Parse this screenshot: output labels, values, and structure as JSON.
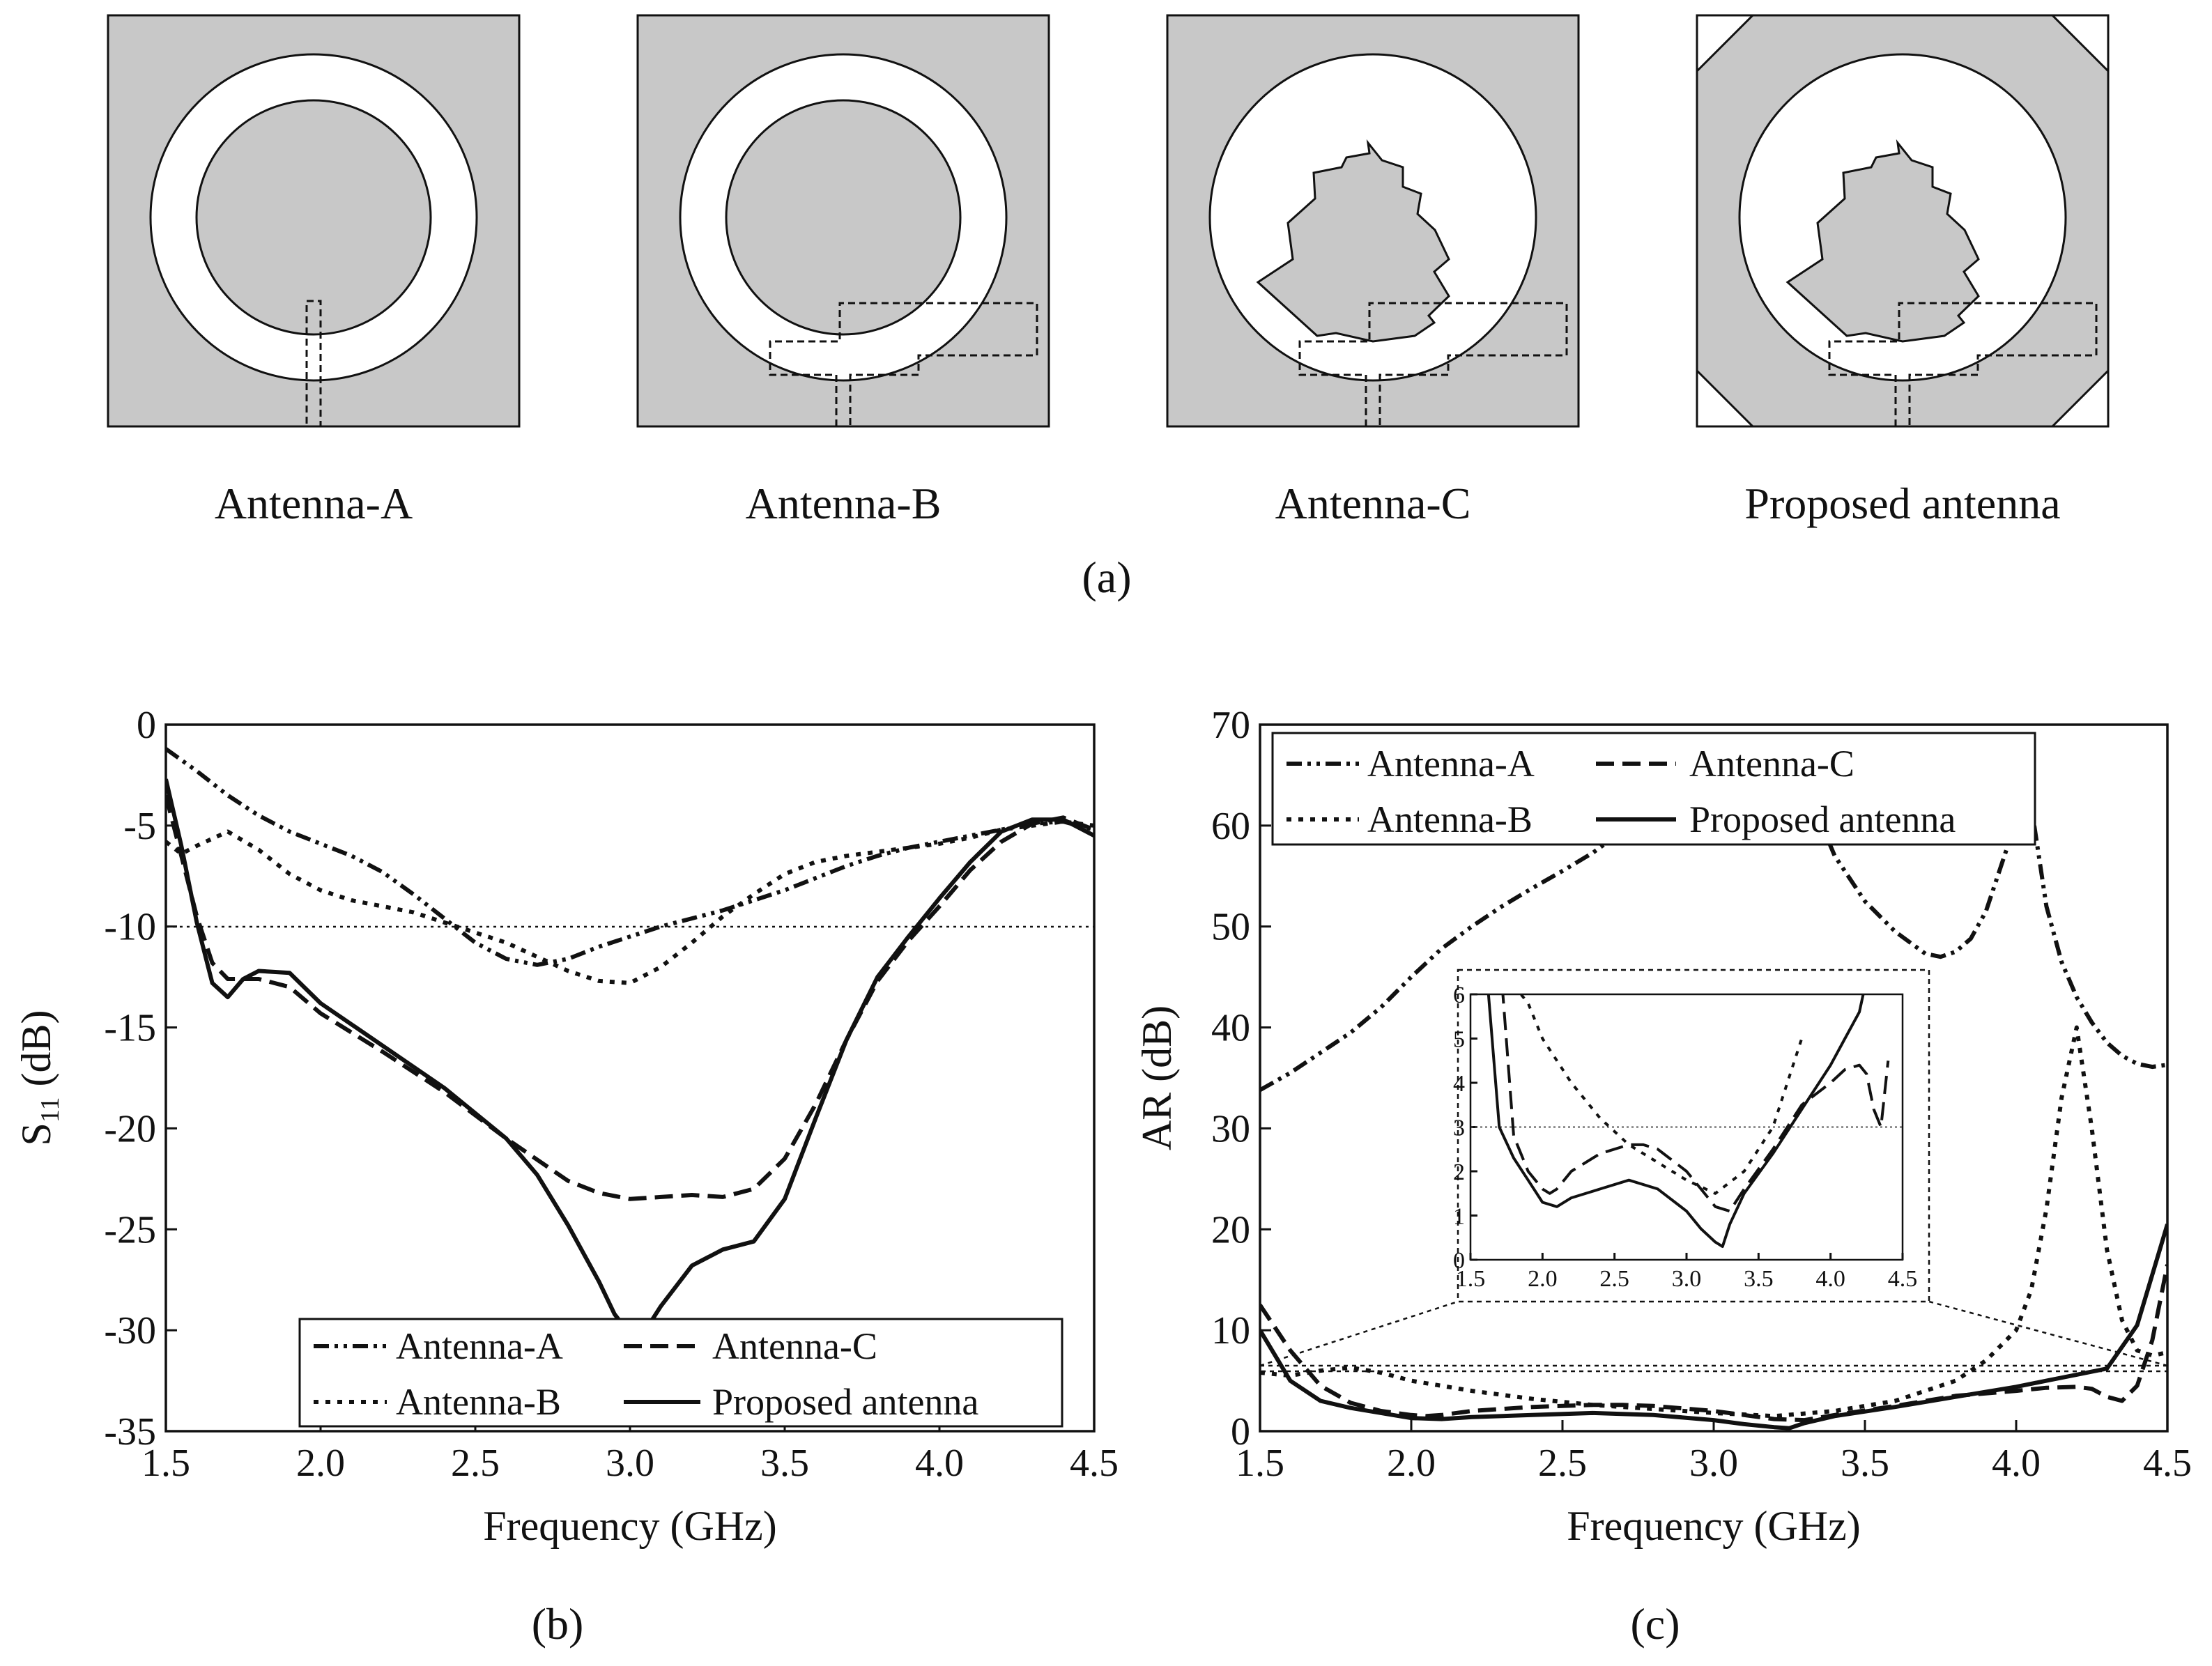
{
  "panel_a": {
    "caption": "(a)",
    "antenna_labels": [
      "Antenna-A",
      "Antenna-B",
      "Antenna-C",
      "Proposed antenna"
    ],
    "colors": {
      "substrate": "#c8c8c8",
      "ring": "#ffffff",
      "outline": "#111111"
    }
  },
  "chart_data": [
    {
      "id": "s11",
      "caption": "(b)",
      "type": "line",
      "title": "",
      "xlabel": "Frequency (GHz)",
      "ylabel_main": "S",
      "ylabel_sub": "11",
      "ylabel_rest": " (dB)",
      "xlim": [
        1.5,
        4.5
      ],
      "ylim": [
        -35,
        0
      ],
      "xticks": [
        1.5,
        2.0,
        2.5,
        3.0,
        3.5,
        4.0,
        4.5
      ],
      "xtick_labels": [
        "1.5",
        "2.0",
        "2.5",
        "3.0",
        "3.5",
        "4.0",
        "4.5"
      ],
      "yticks": [
        0,
        -5,
        -10,
        -15,
        -20,
        -25,
        -30,
        -35
      ],
      "ytick_labels": [
        "0",
        "-5",
        "-10",
        "-15",
        "-20",
        "-25",
        "-30",
        "-35"
      ],
      "reference_line": -10,
      "legend_position": "bottom-right",
      "series": [
        {
          "name": "Antenna-A",
          "style": "dashdotdot",
          "x": [
            1.5,
            1.6,
            1.7,
            1.8,
            1.9,
            2.0,
            2.1,
            2.2,
            2.3,
            2.4,
            2.5,
            2.6,
            2.7,
            2.8,
            2.9,
            3.0,
            3.1,
            3.2,
            3.3,
            3.4,
            3.5,
            3.6,
            3.7,
            3.8,
            3.9,
            4.0,
            4.1,
            4.2,
            4.3,
            4.4,
            4.5
          ],
          "y": [
            -1.2,
            -2.3,
            -3.5,
            -4.5,
            -5.3,
            -5.9,
            -6.5,
            -7.3,
            -8.4,
            -9.6,
            -10.8,
            -11.6,
            -11.9,
            -11.6,
            -11.0,
            -10.5,
            -10.0,
            -9.6,
            -9.2,
            -8.7,
            -8.2,
            -7.6,
            -7.0,
            -6.5,
            -6.1,
            -5.8,
            -5.5,
            -5.2,
            -4.9,
            -4.8,
            -5.2
          ]
        },
        {
          "name": "Antenna-B",
          "style": "dotted",
          "x": [
            1.5,
            1.55,
            1.6,
            1.7,
            1.8,
            1.9,
            2.0,
            2.1,
            2.2,
            2.3,
            2.4,
            2.5,
            2.6,
            2.7,
            2.8,
            2.9,
            3.0,
            3.1,
            3.2,
            3.3,
            3.4,
            3.5,
            3.6,
            3.7,
            3.8,
            3.9,
            4.0,
            4.1,
            4.2,
            4.3,
            4.4,
            4.5
          ],
          "y": [
            -5.8,
            -6.4,
            -6.0,
            -5.3,
            -6.2,
            -7.4,
            -8.2,
            -8.7,
            -9.0,
            -9.3,
            -9.8,
            -10.3,
            -10.8,
            -11.5,
            -12.2,
            -12.7,
            -12.8,
            -12.0,
            -10.8,
            -9.5,
            -8.4,
            -7.4,
            -6.8,
            -6.5,
            -6.3,
            -6.1,
            -5.9,
            -5.6,
            -5.2,
            -5.0,
            -4.8,
            -5.0
          ]
        },
        {
          "name": "Antenna-C",
          "style": "dashed",
          "x": [
            1.5,
            1.55,
            1.6,
            1.65,
            1.7,
            1.8,
            1.9,
            2.0,
            2.2,
            2.4,
            2.6,
            2.8,
            2.9,
            3.0,
            3.1,
            3.2,
            3.3,
            3.4,
            3.5,
            3.6,
            3.7,
            3.8,
            3.9,
            4.0,
            4.1,
            4.2,
            4.3,
            4.4,
            4.5
          ],
          "y": [
            -3.5,
            -6.5,
            -9.5,
            -11.8,
            -12.6,
            -12.6,
            -13.0,
            -14.3,
            -16.2,
            -18.2,
            -20.5,
            -22.6,
            -23.2,
            -23.5,
            -23.4,
            -23.3,
            -23.4,
            -23.0,
            -21.5,
            -18.8,
            -15.6,
            -12.7,
            -10.7,
            -9.0,
            -7.2,
            -5.8,
            -4.9,
            -4.6,
            -5.2
          ]
        },
        {
          "name": "Proposed antenna",
          "style": "solid",
          "x": [
            1.5,
            1.55,
            1.6,
            1.65,
            1.7,
            1.75,
            1.8,
            1.9,
            2.0,
            2.2,
            2.4,
            2.6,
            2.7,
            2.8,
            2.9,
            2.95,
            3.0,
            3.05,
            3.1,
            3.2,
            3.3,
            3.4,
            3.5,
            3.6,
            3.7,
            3.8,
            3.9,
            4.0,
            4.1,
            4.2,
            4.3,
            4.4,
            4.5
          ],
          "y": [
            -2.7,
            -6.0,
            -9.8,
            -12.8,
            -13.5,
            -12.6,
            -12.2,
            -12.3,
            -13.8,
            -15.9,
            -18.0,
            -20.5,
            -22.3,
            -24.8,
            -27.6,
            -29.2,
            -30.2,
            -30.0,
            -28.8,
            -26.8,
            -26.0,
            -25.6,
            -23.5,
            -19.5,
            -15.6,
            -12.5,
            -10.5,
            -8.6,
            -6.8,
            -5.3,
            -4.7,
            -4.7,
            -5.5
          ]
        }
      ]
    },
    {
      "id": "ar",
      "caption": "(c)",
      "type": "line",
      "title": "",
      "xlabel": "Frequency (GHz)",
      "ylabel": "AR (dB)",
      "xlim": [
        1.5,
        4.5
      ],
      "ylim": [
        0,
        70
      ],
      "xticks": [
        1.5,
        2.0,
        2.5,
        3.0,
        3.5,
        4.0,
        4.5
      ],
      "xtick_labels": [
        "1.5",
        "2.0",
        "2.5",
        "3.0",
        "3.5",
        "4.0",
        "4.5"
      ],
      "yticks": [
        0,
        10,
        20,
        30,
        40,
        50,
        60,
        70
      ],
      "ytick_labels": [
        "0",
        "10",
        "20",
        "30",
        "40",
        "50",
        "60",
        "70"
      ],
      "legend_position": "top-left",
      "series": [
        {
          "name": "Antenna-A",
          "style": "dashdotdot",
          "segments": [
            {
              "x": [
                1.5,
                1.6,
                1.7,
                1.8,
                1.9,
                2.0,
                2.1,
                2.2,
                2.3,
                2.4,
                2.5,
                2.6,
                2.7,
                2.75
              ],
              "y": [
                33.8,
                35.5,
                37.5,
                39.5,
                42.0,
                45.0,
                47.8,
                50.0,
                52.0,
                53.8,
                55.5,
                57.3,
                59.5,
                60.8
              ]
            },
            {
              "x": [
                3.33,
                3.4,
                3.5,
                3.6,
                3.7,
                3.75,
                3.8,
                3.85,
                3.9,
                3.95,
                4.0
              ],
              "y": [
                62.0,
                57.0,
                52.5,
                49.5,
                47.3,
                47.0,
                47.5,
                48.8,
                51.5,
                56.0,
                60.5
              ]
            },
            {
              "x": [
                4.06,
                4.1,
                4.15,
                4.2,
                4.25,
                4.3,
                4.35,
                4.4,
                4.45,
                4.5
              ],
              "y": [
                60.0,
                52.0,
                46.5,
                43.0,
                40.5,
                38.5,
                37.2,
                36.4,
                36.1,
                36.3
              ]
            }
          ]
        },
        {
          "name": "Antenna-B",
          "style": "dotted",
          "x": [
            1.5,
            1.6,
            1.7,
            1.8,
            1.9,
            2.0,
            2.2,
            2.4,
            2.6,
            2.8,
            3.0,
            3.2,
            3.4,
            3.6,
            3.8,
            3.9,
            4.0,
            4.05,
            4.1,
            4.15,
            4.2,
            4.25,
            4.3,
            4.35,
            4.4,
            4.45,
            4.5
          ],
          "y": [
            5.8,
            5.5,
            6.0,
            6.3,
            5.8,
            5.0,
            4.0,
            3.2,
            2.6,
            2.2,
            1.8,
            1.5,
            2.0,
            3.0,
            5.0,
            7.0,
            10.0,
            14.0,
            22.0,
            33.0,
            40.0,
            30.0,
            18.0,
            11.0,
            8.0,
            7.5,
            7.8
          ]
        },
        {
          "name": "Antenna-C",
          "style": "dashed",
          "x": [
            1.5,
            1.6,
            1.7,
            1.8,
            1.9,
            2.0,
            2.05,
            2.1,
            2.2,
            2.4,
            2.6,
            2.7,
            2.8,
            3.0,
            3.1,
            3.2,
            3.3,
            3.4,
            3.6,
            3.8,
            4.0,
            4.1,
            4.2,
            4.25,
            4.3,
            4.35,
            4.4,
            4.45,
            4.5
          ],
          "y": [
            12.5,
            8.0,
            4.5,
            2.8,
            2.0,
            1.6,
            1.5,
            1.6,
            2.0,
            2.4,
            2.6,
            2.6,
            2.5,
            2.0,
            1.6,
            1.2,
            1.1,
            1.6,
            2.5,
            3.5,
            4.0,
            4.3,
            4.4,
            4.2,
            3.4,
            3.0,
            4.5,
            9.0,
            16.5
          ]
        },
        {
          "name": "Proposed antenna",
          "style": "solid",
          "x": [
            1.5,
            1.6,
            1.7,
            1.8,
            1.9,
            2.0,
            2.1,
            2.2,
            2.4,
            2.6,
            2.8,
            3.0,
            3.1,
            3.2,
            3.25,
            3.3,
            3.4,
            3.6,
            3.8,
            4.0,
            4.1,
            4.2,
            4.3,
            4.4,
            4.45,
            4.5
          ],
          "y": [
            10.0,
            5.0,
            3.0,
            2.3,
            1.8,
            1.3,
            1.2,
            1.4,
            1.6,
            1.8,
            1.6,
            1.1,
            0.7,
            0.4,
            0.3,
            0.8,
            1.5,
            2.4,
            3.4,
            4.4,
            5.0,
            5.6,
            6.2,
            10.5,
            15.5,
            20.5
          ]
        }
      ],
      "inset": {
        "xlim": [
          1.5,
          4.5
        ],
        "ylim": [
          0,
          6
        ],
        "xticks": [
          1.5,
          2.0,
          2.5,
          3.0,
          3.5,
          4.0,
          4.5
        ],
        "xtick_labels": [
          "1.5",
          "2.0",
          "2.5",
          "3.0",
          "3.5",
          "4.0",
          "4.5"
        ],
        "yticks": [
          0,
          1,
          2,
          3,
          4,
          5,
          6
        ],
        "ytick_labels": [
          "0",
          "1",
          "2",
          "3",
          "4",
          "5",
          "6"
        ],
        "reference_line": 3,
        "series": [
          {
            "name": "Antenna-B",
            "style": "dotted",
            "x": [
              1.8,
              1.9,
              2.0,
              2.2,
              2.4,
              2.6,
              2.8,
              3.0,
              3.2,
              3.4,
              3.6,
              3.8
            ],
            "y": [
              6.2,
              5.8,
              5.0,
              4.0,
              3.2,
              2.6,
              2.2,
              1.8,
              1.5,
              2.0,
              3.0,
              5.0
            ]
          },
          {
            "name": "Antenna-C",
            "style": "dashed",
            "x": [
              1.72,
              1.8,
              1.9,
              2.0,
              2.05,
              2.1,
              2.2,
              2.4,
              2.6,
              2.7,
              2.8,
              3.0,
              3.1,
              3.2,
              3.3,
              3.4,
              3.6,
              3.8,
              4.0,
              4.1,
              4.2,
              4.25,
              4.3,
              4.35,
              4.4
            ],
            "y": [
              6.2,
              2.8,
              2.0,
              1.6,
              1.5,
              1.6,
              2.0,
              2.4,
              2.6,
              2.6,
              2.5,
              2.0,
              1.6,
              1.2,
              1.1,
              1.6,
              2.5,
              3.5,
              4.0,
              4.3,
              4.4,
              4.2,
              3.4,
              3.0,
              4.5
            ]
          },
          {
            "name": "Proposed antenna",
            "style": "solid",
            "x": [
              1.62,
              1.7,
              1.8,
              1.9,
              2.0,
              2.1,
              2.2,
              2.4,
              2.6,
              2.8,
              3.0,
              3.1,
              3.2,
              3.25,
              3.3,
              3.4,
              3.6,
              3.8,
              4.0,
              4.1,
              4.2,
              4.24
            ],
            "y": [
              6.2,
              3.0,
              2.3,
              1.8,
              1.3,
              1.2,
              1.4,
              1.6,
              1.8,
              1.6,
              1.1,
              0.7,
              0.4,
              0.3,
              0.8,
              1.5,
              2.4,
              3.4,
              4.4,
              5.0,
              5.6,
              6.2
            ]
          }
        ]
      }
    }
  ]
}
